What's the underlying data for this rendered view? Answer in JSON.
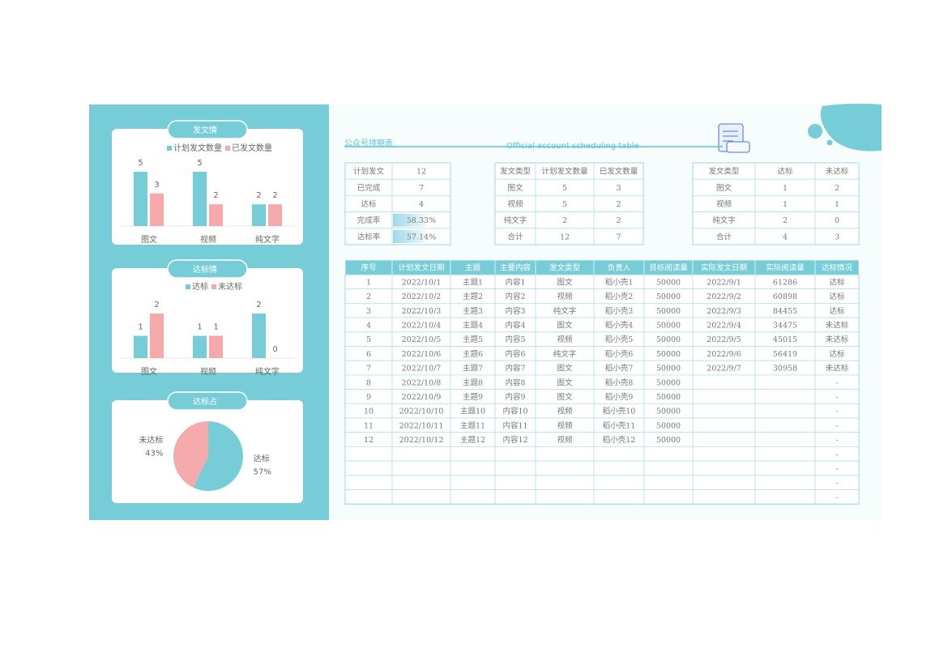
{
  "chart_data": [
    {
      "type": "bar",
      "title": "发文情",
      "categories": [
        "图文",
        "视频",
        "纯文字"
      ],
      "series": [
        {
          "name": "计划发文数量",
          "color": "#76cdd8",
          "values": [
            5,
            5,
            2
          ]
        },
        {
          "name": "已发文数量",
          "color": "#f5a9ab",
          "values": [
            3,
            2,
            2
          ]
        }
      ]
    },
    {
      "type": "bar",
      "title": "达标情",
      "categories": [
        "图文",
        "视频",
        "纯文字"
      ],
      "series": [
        {
          "name": "达标",
          "color": "#76cdd8",
          "values": [
            1,
            1,
            2
          ]
        },
        {
          "name": "未达标",
          "color": "#f5a9ab",
          "values": [
            2,
            1,
            0
          ]
        }
      ]
    },
    {
      "type": "pie",
      "title": "达标占",
      "categories": [
        "达标",
        "未达标"
      ],
      "values": [
        57,
        43
      ],
      "value_labels": [
        "57%",
        "43%"
      ],
      "colors": [
        "#76cdd8",
        "#f5a9ab"
      ]
    }
  ],
  "header": {
    "title": "公众号排期表",
    "subtitle": "Official account scheduling table"
  },
  "summary": {
    "rows": [
      [
        "计划发文",
        12
      ],
      [
        "已完成",
        7
      ],
      [
        "达标",
        4
      ],
      [
        "完成率",
        "58.33%"
      ],
      [
        "达标率",
        "57.14%"
      ]
    ]
  },
  "type_table": {
    "rows": [
      [
        "发文类型",
        "计划发文数量",
        "已发文数量"
      ],
      [
        "图文",
        5,
        3
      ],
      [
        "视频",
        5,
        2
      ],
      [
        "纯文字",
        2,
        2
      ],
      [
        "合计",
        12,
        7
      ]
    ]
  },
  "status_table": {
    "rows": [
      [
        "发文类型",
        "达标",
        "未达标"
      ],
      [
        "图文",
        1,
        2
      ],
      [
        "视频",
        1,
        1
      ],
      [
        "纯文字",
        2,
        0
      ],
      [
        "合计",
        4,
        3
      ]
    ]
  },
  "schedule": {
    "columns": [
      "序号",
      "计划发文日期",
      "主题",
      "主要内容",
      "发文类型",
      "负责人",
      "目标阅读量",
      "实际发文日期",
      "实际阅读量",
      "达标情况"
    ],
    "rows": [
      [
        1,
        "2022/10/1",
        "主题1",
        "内容1",
        "图文",
        "稻小壳1",
        50000,
        "2022/9/1",
        61286,
        "达标"
      ],
      [
        2,
        "2022/10/2",
        "主题2",
        "内容2",
        "视频",
        "稻小壳2",
        50000,
        "2022/9/2",
        60898,
        "达标"
      ],
      [
        3,
        "2022/10/3",
        "主题3",
        "内容3",
        "纯文字",
        "稻小壳3",
        50000,
        "2022/9/3",
        84455,
        "达标"
      ],
      [
        4,
        "2022/10/4",
        "主题4",
        "内容4",
        "图文",
        "稻小壳4",
        50000,
        "2022/9/4",
        34475,
        "未达标"
      ],
      [
        5,
        "2022/10/5",
        "主题5",
        "内容5",
        "视频",
        "稻小壳5",
        50000,
        "2022/9/5",
        45015,
        "未达标"
      ],
      [
        6,
        "2022/10/6",
        "主题6",
        "内容6",
        "纯文字",
        "稻小壳6",
        50000,
        "2022/9/6",
        56419,
        "达标"
      ],
      [
        7,
        "2022/10/7",
        "主题7",
        "内容7",
        "图文",
        "稻小壳7",
        50000,
        "2022/9/7",
        30958,
        "未达标"
      ],
      [
        8,
        "2022/10/8",
        "主题8",
        "内容8",
        "图文",
        "稻小壳8",
        50000,
        null,
        null,
        "-"
      ],
      [
        9,
        "2022/10/9",
        "主题9",
        "内容9",
        "图文",
        "稻小壳9",
        50000,
        null,
        null,
        "-"
      ],
      [
        10,
        "2022/10/10",
        "主题10",
        "内容10",
        "视频",
        "稻小壳10",
        50000,
        null,
        null,
        "-"
      ],
      [
        11,
        "2022/10/11",
        "主题11",
        "内容11",
        "视频",
        "稻小壳11",
        50000,
        null,
        null,
        "-"
      ],
      [
        12,
        "2022/10/12",
        "主题12",
        "内容12",
        "视频",
        "稻小壳12",
        50000,
        null,
        null,
        "-"
      ],
      [
        null,
        null,
        null,
        null,
        null,
        null,
        null,
        null,
        null,
        "-"
      ],
      [
        null,
        null,
        null,
        null,
        null,
        null,
        null,
        null,
        null,
        "-"
      ],
      [
        null,
        null,
        null,
        null,
        null,
        null,
        null,
        null,
        null,
        "-"
      ],
      [
        null,
        null,
        null,
        null,
        null,
        null,
        null,
        null,
        null,
        "-"
      ]
    ]
  }
}
